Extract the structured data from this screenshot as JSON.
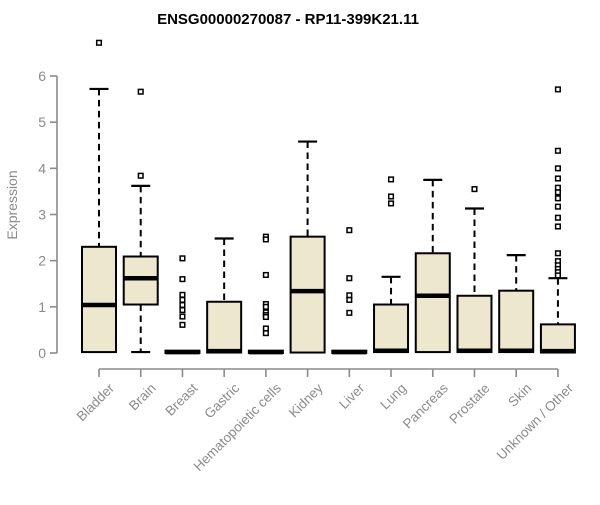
{
  "chart_data": {
    "type": "boxplot",
    "title": "ENSG00000270087 - RP11-399K21.11",
    "ylabel": "Expression",
    "ylim": [
      0,
      6
    ],
    "yticks": [
      0,
      1,
      2,
      3,
      4,
      5,
      6
    ],
    "grid": false,
    "legend": "none",
    "colors": {
      "box_fill": "#EDE8CD",
      "box_stroke": "#000000",
      "axis": "#8B8B8B",
      "outlier_fill": "#FFFFFF"
    },
    "categories": [
      "Bladder",
      "Brain",
      "Breast",
      "Gastric",
      "Hematopoietic cells",
      "Kidney",
      "Liver",
      "Lung",
      "Pancreas",
      "Prostate",
      "Skin",
      "Unknown / Other"
    ],
    "boxes": [
      {
        "category": "Bladder",
        "whislo": 0,
        "q1": 0.02,
        "med": 1.04,
        "q3": 2.3,
        "whishi": 5.72,
        "outliers": [
          6.72
        ]
      },
      {
        "category": "Brain",
        "whislo": 0.02,
        "q1": 1.05,
        "med": 1.62,
        "q3": 2.09,
        "whishi": 3.62,
        "outliers": [
          5.66,
          3.84
        ]
      },
      {
        "category": "Breast",
        "whislo": 0,
        "q1": 0,
        "med": 0.02,
        "q3": 0.05,
        "whishi": 0.05,
        "outliers": [
          2.05,
          1.6,
          1.26,
          1.15,
          1.04,
          0.93,
          0.79,
          0.61
        ]
      },
      {
        "category": "Gastric",
        "whislo": 0,
        "q1": 0.01,
        "med": 0.04,
        "q3": 1.11,
        "whishi": 2.48,
        "outliers": []
      },
      {
        "category": "Hematopoietic cells",
        "whislo": 0,
        "q1": 0,
        "med": 0.02,
        "q3": 0.05,
        "whishi": 0.05,
        "outliers": [
          2.52,
          2.46,
          1.69,
          1.06,
          1.0,
          0.88,
          0.82,
          0.78,
          0.53,
          0.43
        ]
      },
      {
        "category": "Kidney",
        "whislo": 0,
        "q1": 0.01,
        "med": 1.34,
        "q3": 2.52,
        "whishi": 4.58,
        "outliers": []
      },
      {
        "category": "Liver",
        "whislo": 0,
        "q1": 0,
        "med": 0.02,
        "q3": 0.05,
        "whishi": 0.05,
        "outliers": [
          2.66,
          1.62,
          1.25,
          1.15,
          0.87
        ]
      },
      {
        "category": "Lung",
        "whislo": 0,
        "q1": 0.02,
        "med": 0.05,
        "q3": 1.05,
        "whishi": 1.65,
        "outliers": [
          3.76,
          3.39,
          3.24
        ]
      },
      {
        "category": "Pancreas",
        "whislo": 0,
        "q1": 0.02,
        "med": 1.24,
        "q3": 2.16,
        "whishi": 3.75,
        "outliers": []
      },
      {
        "category": "Prostate",
        "whislo": 0,
        "q1": 0.02,
        "med": 0.05,
        "q3": 1.24,
        "whishi": 3.13,
        "outliers": [
          3.55
        ]
      },
      {
        "category": "Skin",
        "whislo": 0,
        "q1": 0.02,
        "med": 0.05,
        "q3": 1.35,
        "whishi": 2.12,
        "outliers": []
      },
      {
        "category": "Unknown / Other",
        "whislo": 0,
        "q1": 0.01,
        "med": 0.04,
        "q3": 0.62,
        "whishi": 1.62,
        "outliers": [
          5.71,
          4.38,
          4.0,
          3.78,
          3.58,
          3.48,
          3.35,
          3.17,
          2.93,
          2.74,
          2.16,
          1.99,
          1.9,
          1.82,
          1.75,
          1.68
        ]
      }
    ]
  }
}
